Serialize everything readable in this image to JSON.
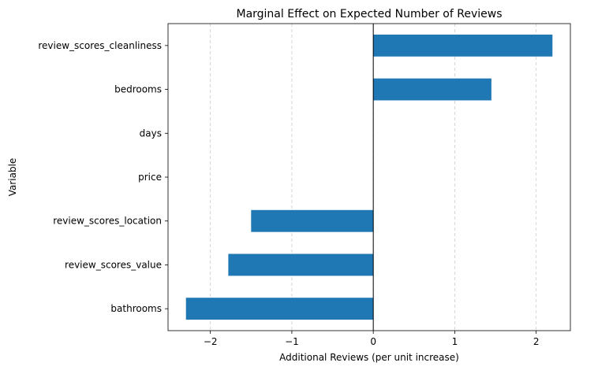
{
  "chart_data": {
    "type": "bar",
    "orientation": "horizontal",
    "title": "Marginal Effect on Expected Number of Reviews",
    "xlabel": "Additional Reviews (per unit increase)",
    "ylabel": "Variable",
    "categories": [
      "review_scores_cleanliness",
      "bedrooms",
      "days",
      "price",
      "review_scores_location",
      "review_scores_value",
      "bathrooms"
    ],
    "values": [
      2.2,
      1.45,
      0.0,
      0.0,
      -1.5,
      -1.78,
      -2.3
    ],
    "xlim": [
      -2.52,
      2.42
    ],
    "xticks": [
      -2,
      -1,
      0,
      1,
      2
    ],
    "xtick_labels": [
      "−2",
      "−1",
      "0",
      "1",
      "2"
    ],
    "grid": "x-dashed",
    "reference_line": 0,
    "colors": {
      "bar": "#1f77b4",
      "grid": "#cccccc",
      "axis": "#000000",
      "background": "#ffffff"
    }
  }
}
